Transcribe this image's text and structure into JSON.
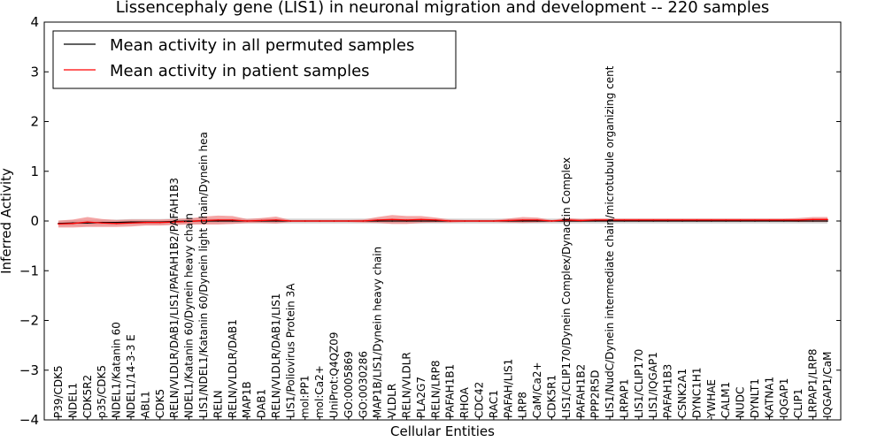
{
  "chart_data": {
    "type": "line",
    "title": "Lissencephaly gene (LIS1) in neuronal migration and development -- 220 samples",
    "xlabel": "Cellular Entities",
    "ylabel": "Inferred Activity",
    "ylim": [
      -4,
      4
    ],
    "yticks": [
      "−4",
      "−3",
      "−2",
      "−1",
      "0",
      "1",
      "2",
      "3",
      "4"
    ],
    "legend_position": "top-left",
    "categories": [
      "P39/CDK5",
      "NDEL1",
      "CDK5R2",
      "p35/CDK5",
      "NDEL1/Katanin 60",
      "NDEL1/14-3-3 E",
      "ABL1",
      "CDK5",
      "RELN/VLDLR/DAB1/LIS1/PAFAH1B2/PAFAH1B3",
      "NDEL1/Katanin 60/Dynein heavy chain",
      "LIS1/NDEL1/Katanin 60/Dynein light chain/Dynein hea",
      "RELN",
      "RELN/VLDLR/DAB1",
      "MAP1B",
      "DAB1",
      "RELN/VLDLR/DAB1/LIS1",
      "LIS1/Poliovirus Protein 3A",
      "mol:PP1",
      "mol:Ca2+",
      "UniProt:Q4QZ09",
      "GO:0005869",
      "GO:0030286",
      "MAP1B/LIS1/Dynein heavy chain",
      "VLDLR",
      "RELN/VLDLR",
      "PLA2G7",
      "RELN/LRP8",
      "PAFAH1B1",
      "RHOA",
      "CDC42",
      "RAC1",
      "PAFAH/LIS1",
      "LRP8",
      "CaM/Ca2+",
      "CDK5R1",
      "LIS1/CLIP170/Dynein Complex/Dynactin Complex",
      "PAFAH1B2",
      "PPP2R5D",
      "LIS1/NudC/Dynein intermediate chain/microtubule organizing cent",
      "LRPAP1",
      "LIS1/CLIP170",
      "LIS1/IQGAP1",
      "PAFAH1B3",
      "CSNK2A1",
      "DYNC1H1",
      "YWHAE",
      "CALM1",
      "NUDC",
      "DYNLT1",
      "KATNA1",
      "IQGAP1",
      "CLIP1",
      "LRPAP1/LRP8",
      "IQGAP1/CaM"
    ],
    "series": [
      {
        "name": "Mean activity in all permuted samples",
        "color": "#000000",
        "band_color": "#bbbbbb",
        "values": [
          -0.05,
          -0.04,
          -0.04,
          -0.03,
          -0.03,
          -0.02,
          -0.02,
          -0.02,
          -0.01,
          0.0,
          0.0,
          0.0,
          0.0,
          0.0,
          0.0,
          0.0,
          0.0,
          0.0,
          0.0,
          0.0,
          0.0,
          0.0,
          0.0,
          0.0,
          0.0,
          0.0,
          0.0,
          0.0,
          0.0,
          0.0,
          0.0,
          0.0,
          0.0,
          0.0,
          0.0,
          0.0,
          0.0,
          0.0,
          0.0,
          0.0,
          0.0,
          0.0,
          0.0,
          0.0,
          0.0,
          0.0,
          0.0,
          0.0,
          0.0,
          0.0,
          0.0,
          0.0,
          0.0,
          0.0
        ],
        "band": [
          0.06,
          0.06,
          0.06,
          0.06,
          0.06,
          0.06,
          0.06,
          0.06,
          0.06,
          0.06,
          0.05,
          0.05,
          0.05,
          0.05,
          0.05,
          0.05,
          0.05,
          0.05,
          0.05,
          0.05,
          0.05,
          0.05,
          0.05,
          0.05,
          0.05,
          0.05,
          0.05,
          0.05,
          0.05,
          0.05,
          0.05,
          0.05,
          0.05,
          0.05,
          0.05,
          0.05,
          0.05,
          0.05,
          0.05,
          0.05,
          0.05,
          0.05,
          0.05,
          0.05,
          0.05,
          0.05,
          0.05,
          0.05,
          0.05,
          0.05,
          0.05,
          0.05,
          0.05,
          0.05
        ]
      },
      {
        "name": "Mean activity in patient samples",
        "color": "#ff0000",
        "band_color": "#f08080",
        "values": [
          -0.06,
          -0.05,
          -0.02,
          -0.04,
          -0.05,
          -0.04,
          -0.03,
          -0.03,
          -0.02,
          -0.01,
          0.01,
          0.02,
          0.02,
          0.0,
          0.01,
          0.02,
          0.0,
          0.0,
          0.0,
          0.0,
          0.0,
          0.0,
          0.02,
          0.03,
          0.02,
          0.03,
          0.02,
          0.0,
          0.0,
          0.0,
          0.0,
          0.01,
          0.02,
          0.02,
          0.0,
          0.02,
          0.01,
          0.02,
          0.02,
          0.02,
          0.02,
          0.02,
          0.02,
          0.02,
          0.02,
          0.02,
          0.02,
          0.02,
          0.02,
          0.02,
          0.02,
          0.02,
          0.03,
          0.03
        ],
        "band": [
          0.07,
          0.08,
          0.1,
          0.08,
          0.07,
          0.07,
          0.06,
          0.06,
          0.06,
          0.06,
          0.08,
          0.09,
          0.08,
          0.04,
          0.05,
          0.07,
          0.02,
          0.02,
          0.02,
          0.02,
          0.02,
          0.03,
          0.06,
          0.09,
          0.08,
          0.07,
          0.05,
          0.03,
          0.02,
          0.02,
          0.02,
          0.04,
          0.06,
          0.05,
          0.02,
          0.04,
          0.03,
          0.03,
          0.03,
          0.03,
          0.03,
          0.03,
          0.03,
          0.03,
          0.03,
          0.03,
          0.03,
          0.03,
          0.03,
          0.03,
          0.03,
          0.04,
          0.05,
          0.05
        ]
      }
    ]
  }
}
